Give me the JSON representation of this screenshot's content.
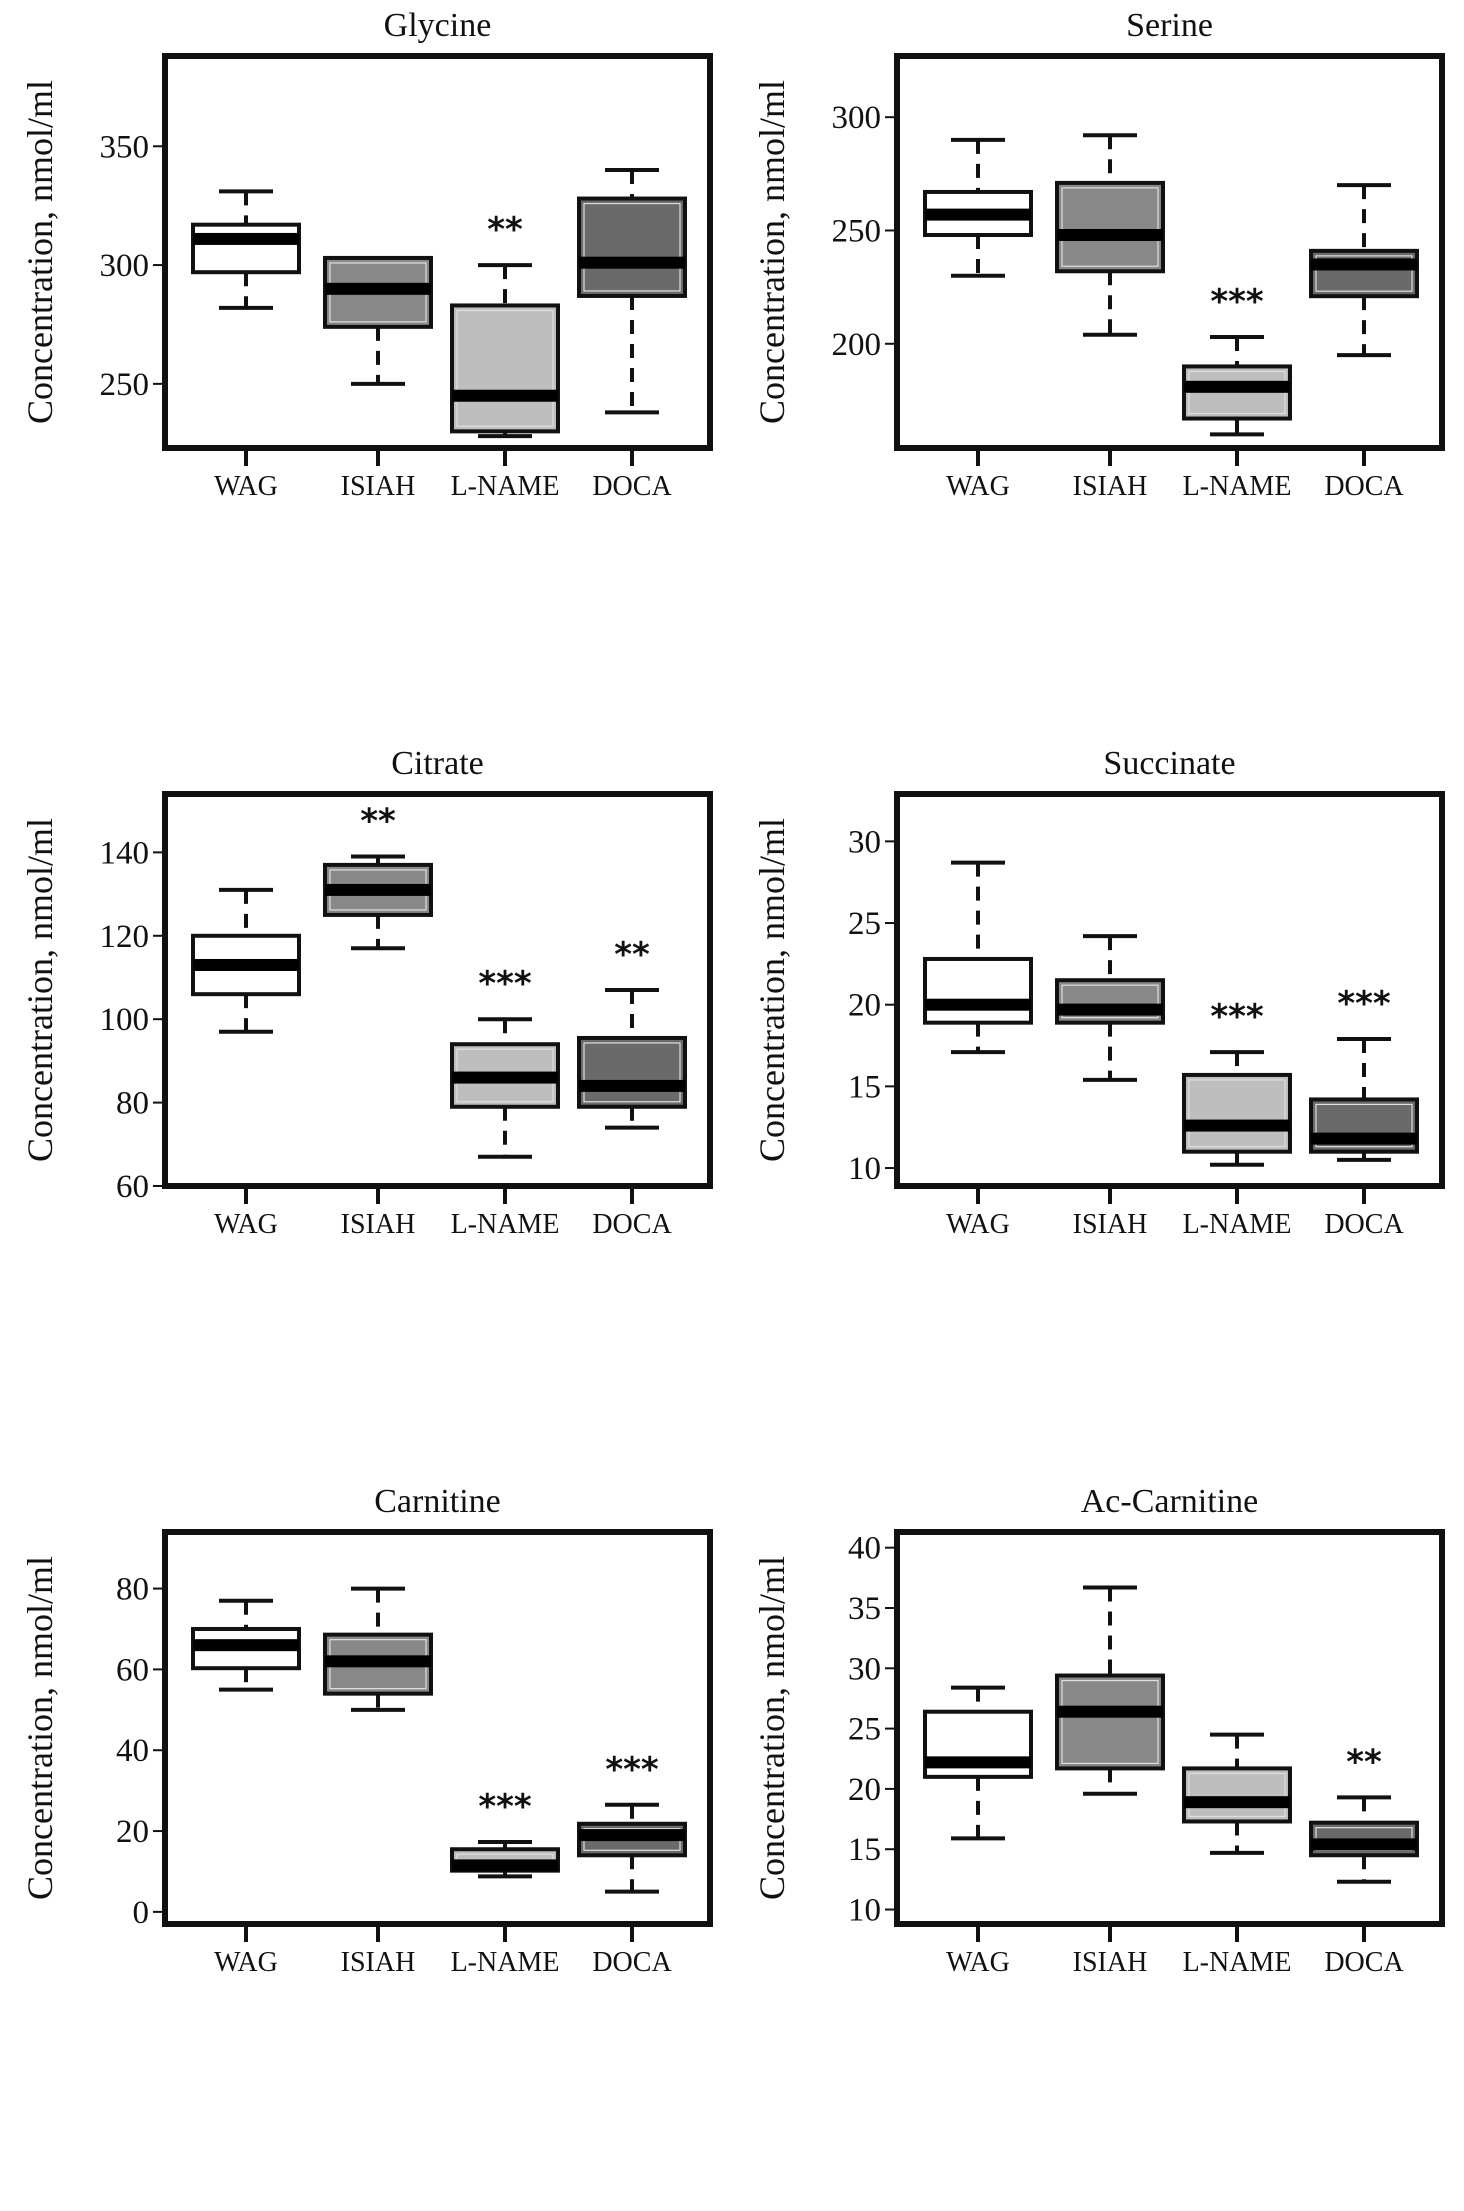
{
  "figure": {
    "groups": [
      "WAG",
      "ISIAH",
      "L-NAME",
      "DOCA"
    ],
    "group_colors": {
      "WAG": "#ffffff",
      "ISIAH": "#888888",
      "L-NAME": "#bebebe",
      "DOCA": "#6a6a6a"
    },
    "ylabel": "Concentration, nmol/ml"
  },
  "chart_data": [
    {
      "type": "boxplot",
      "title": "Glycine",
      "xlabel": "",
      "ylabel": "Concentration, nmol/ml",
      "categories": [
        "WAG",
        "ISIAH",
        "L-NAME",
        "DOCA"
      ],
      "ylim": [
        223,
        388
      ],
      "yticks": [
        250,
        300,
        350
      ],
      "grid": false,
      "boxes": [
        {
          "group": "WAG",
          "whisker_low": 282,
          "q1": 297,
          "median": 311,
          "q3": 317,
          "whisker_high": 331,
          "sig": ""
        },
        {
          "group": "ISIAH",
          "whisker_low": 250,
          "q1": 274,
          "median": 290,
          "q3": 303,
          "whisker_high": 303,
          "sig": ""
        },
        {
          "group": "L-NAME",
          "whisker_low": 228,
          "q1": 230,
          "median": 245,
          "q3": 283,
          "whisker_high": 300,
          "sig": "**"
        },
        {
          "group": "DOCA",
          "whisker_low": 238,
          "q1": 287,
          "median": 301,
          "q3": 328,
          "whisker_high": 340,
          "sig": ""
        }
      ]
    },
    {
      "type": "boxplot",
      "title": "Serine",
      "xlabel": "",
      "ylabel": "Concentration, nmol/ml",
      "categories": [
        "WAG",
        "ISIAH",
        "L-NAME",
        "DOCA"
      ],
      "ylim": [
        154,
        327
      ],
      "yticks": [
        200,
        250,
        300
      ],
      "grid": false,
      "boxes": [
        {
          "group": "WAG",
          "whisker_low": 230,
          "q1": 248,
          "median": 257,
          "q3": 267,
          "whisker_high": 290,
          "sig": ""
        },
        {
          "group": "ISIAH",
          "whisker_low": 204,
          "q1": 232,
          "median": 248,
          "q3": 271,
          "whisker_high": 292,
          "sig": ""
        },
        {
          "group": "L-NAME",
          "whisker_low": 160,
          "q1": 167,
          "median": 181,
          "q3": 190,
          "whisker_high": 203,
          "sig": "***"
        },
        {
          "group": "DOCA",
          "whisker_low": 195,
          "q1": 221,
          "median": 235,
          "q3": 241,
          "whisker_high": 270,
          "sig": ""
        }
      ]
    },
    {
      "type": "boxplot",
      "title": "Citrate",
      "xlabel": "",
      "ylabel": "Concentration, nmol/ml",
      "categories": [
        "WAG",
        "ISIAH",
        "L-NAME",
        "DOCA"
      ],
      "ylim": [
        60,
        154
      ],
      "yticks": [
        60,
        80,
        100,
        120,
        140
      ],
      "grid": false,
      "boxes": [
        {
          "group": "WAG",
          "whisker_low": 97,
          "q1": 106,
          "median": 113,
          "q3": 120,
          "whisker_high": 131,
          "sig": ""
        },
        {
          "group": "ISIAH",
          "whisker_low": 117,
          "q1": 125,
          "median": 131,
          "q3": 137,
          "whisker_high": 139,
          "sig": "**"
        },
        {
          "group": "L-NAME",
          "whisker_low": 67,
          "q1": 79,
          "median": 86,
          "q3": 94,
          "whisker_high": 100,
          "sig": "***"
        },
        {
          "group": "DOCA",
          "whisker_low": 74,
          "q1": 79,
          "median": 84,
          "q3": 95.5,
          "whisker_high": 107,
          "sig": "**"
        }
      ]
    },
    {
      "type": "boxplot",
      "title": "Succinate",
      "xlabel": "",
      "ylabel": "Concentration, nmol/ml",
      "categories": [
        "WAG",
        "ISIAH",
        "L-NAME",
        "DOCA"
      ],
      "ylim": [
        8.9,
        32.9
      ],
      "yticks": [
        10,
        15,
        20,
        25,
        30
      ],
      "grid": false,
      "boxes": [
        {
          "group": "WAG",
          "whisker_low": 17.1,
          "q1": 18.9,
          "median": 20.0,
          "q3": 22.8,
          "whisker_high": 28.7,
          "sig": ""
        },
        {
          "group": "ISIAH",
          "whisker_low": 15.4,
          "q1": 18.9,
          "median": 19.7,
          "q3": 21.5,
          "whisker_high": 24.2,
          "sig": ""
        },
        {
          "group": "L-NAME",
          "whisker_low": 10.2,
          "q1": 11.0,
          "median": 12.6,
          "q3": 15.7,
          "whisker_high": 17.1,
          "sig": "***"
        },
        {
          "group": "DOCA",
          "whisker_low": 10.5,
          "q1": 11.0,
          "median": 11.8,
          "q3": 14.2,
          "whisker_high": 17.9,
          "sig": "***"
        }
      ]
    },
    {
      "type": "boxplot",
      "title": "Carnitine",
      "xlabel": "",
      "ylabel": "Concentration, nmol/ml",
      "categories": [
        "WAG",
        "ISIAH",
        "L-NAME",
        "DOCA"
      ],
      "ylim": [
        -3,
        94
      ],
      "yticks": [
        0,
        20,
        40,
        60,
        80
      ],
      "grid": false,
      "boxes": [
        {
          "group": "WAG",
          "whisker_low": 55,
          "q1": 60.3,
          "median": 66,
          "q3": 70,
          "whisker_high": 77,
          "sig": ""
        },
        {
          "group": "ISIAH",
          "whisker_low": 50,
          "q1": 54,
          "median": 62,
          "q3": 68.6,
          "whisker_high": 80,
          "sig": ""
        },
        {
          "group": "L-NAME",
          "whisker_low": 8.8,
          "q1": 10.2,
          "median": 11.5,
          "q3": 15.5,
          "whisker_high": 17.3,
          "sig": "***"
        },
        {
          "group": "DOCA",
          "whisker_low": 5,
          "q1": 14,
          "median": 19,
          "q3": 21.8,
          "whisker_high": 26.5,
          "sig": "***"
        }
      ]
    },
    {
      "type": "boxplot",
      "title": "Ac-Carnitine",
      "xlabel": "",
      "ylabel": "Concentration, nmol/ml",
      "categories": [
        "WAG",
        "ISIAH",
        "L-NAME",
        "DOCA"
      ],
      "ylim": [
        8.8,
        41.3
      ],
      "yticks": [
        10,
        15,
        20,
        25,
        30,
        35,
        40
      ],
      "grid": false,
      "boxes": [
        {
          "group": "WAG",
          "whisker_low": 15.9,
          "q1": 21.0,
          "median": 22.2,
          "q3": 26.4,
          "whisker_high": 28.4,
          "sig": ""
        },
        {
          "group": "ISIAH",
          "whisker_low": 19.6,
          "q1": 21.7,
          "median": 26.4,
          "q3": 29.4,
          "whisker_high": 36.7,
          "sig": ""
        },
        {
          "group": "L-NAME",
          "whisker_low": 14.7,
          "q1": 17.3,
          "median": 18.9,
          "q3": 21.7,
          "whisker_high": 24.5,
          "sig": ""
        },
        {
          "group": "DOCA",
          "whisker_low": 12.3,
          "q1": 14.5,
          "median": 15.4,
          "q3": 17.2,
          "whisker_high": 19.3,
          "sig": "**"
        }
      ]
    }
  ]
}
